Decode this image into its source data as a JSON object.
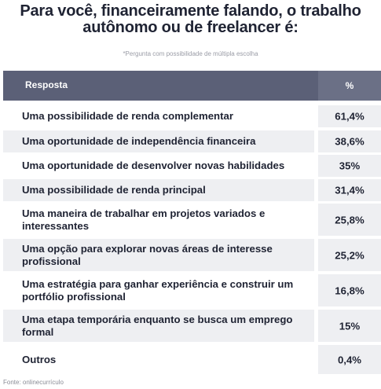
{
  "title": "Para você, financeiramente falando, o trabalho autônomo ou de freelancer é:",
  "note": "*Pergunta com possibilidade de múltipla escolha",
  "source": "Fonte: onlinecurrículo",
  "chart_data": {
    "type": "table",
    "columns": [
      "Resposta",
      "%"
    ],
    "rows": [
      {
        "label": "Uma possibilidade de renda complementar",
        "value": "61,4%"
      },
      {
        "label": "Uma oportunidade de independência financeira",
        "value": "38,6%"
      },
      {
        "label": "Uma oportunidade de desenvolver novas habilidades",
        "value": "35%"
      },
      {
        "label": "Uma possibilidade de renda principal",
        "value": "31,4%"
      },
      {
        "label": "Uma maneira de trabalhar em projetos variados e interessantes",
        "value": "25,8%"
      },
      {
        "label": "Uma opção para explorar novas áreas de interesse profissional",
        "value": "25,2%"
      },
      {
        "label": "Uma estratégia para ganhar experiência e construir um portfólio profissional",
        "value": "16,8%"
      },
      {
        "label": "Uma etapa temporária enquanto se busca um emprego formal",
        "value": "15%"
      },
      {
        "label": "Outros",
        "value": "0,4%"
      }
    ]
  }
}
